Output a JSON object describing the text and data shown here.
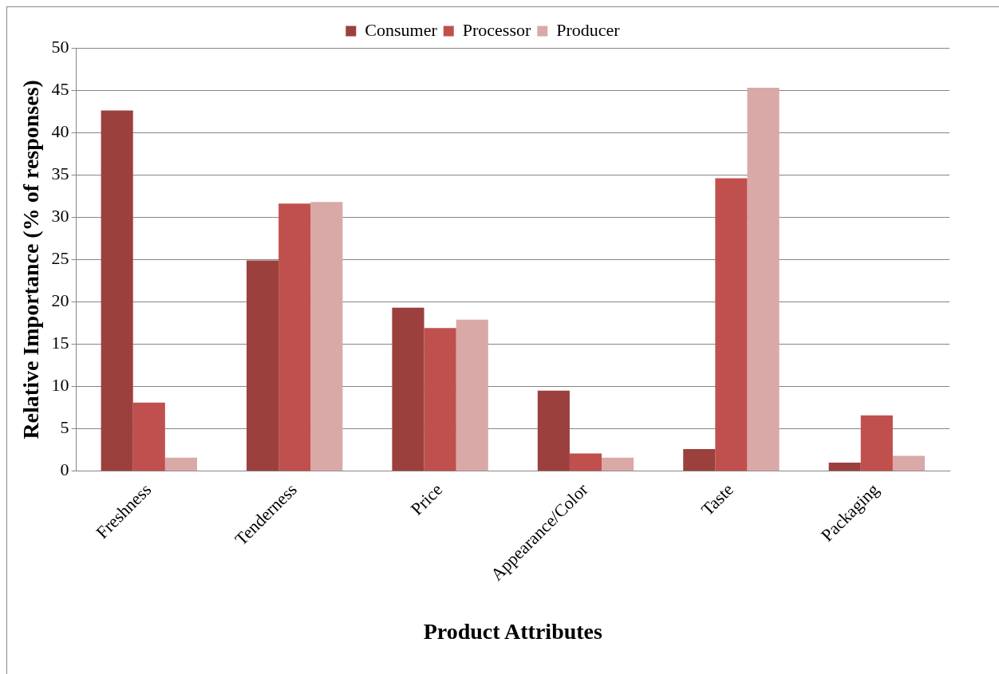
{
  "chart_data": {
    "type": "bar",
    "xlabel": "Product Attributes",
    "ylabel": "Relative Importance (% of responses)",
    "categories": [
      "Freshness",
      "Tenderness",
      "Price",
      "Appearance/Color",
      "Taste",
      "Packaging"
    ],
    "series": [
      {
        "name": "Consumer",
        "color": "#9c403e",
        "values": [
          42.6,
          24.9,
          19.3,
          9.5,
          2.6,
          1.0
        ]
      },
      {
        "name": "Processor",
        "color": "#c0504d",
        "values": [
          8.1,
          31.6,
          16.9,
          2.1,
          34.6,
          6.6
        ]
      },
      {
        "name": "Producer",
        "color": "#d9a9a8",
        "values": [
          1.6,
          31.8,
          17.9,
          1.6,
          45.3,
          1.8
        ]
      }
    ],
    "ylim": [
      0,
      50
    ],
    "yticks": [
      0,
      5,
      10,
      15,
      20,
      25,
      30,
      35,
      40,
      45,
      50
    ],
    "grid": "y",
    "legend": "top"
  }
}
